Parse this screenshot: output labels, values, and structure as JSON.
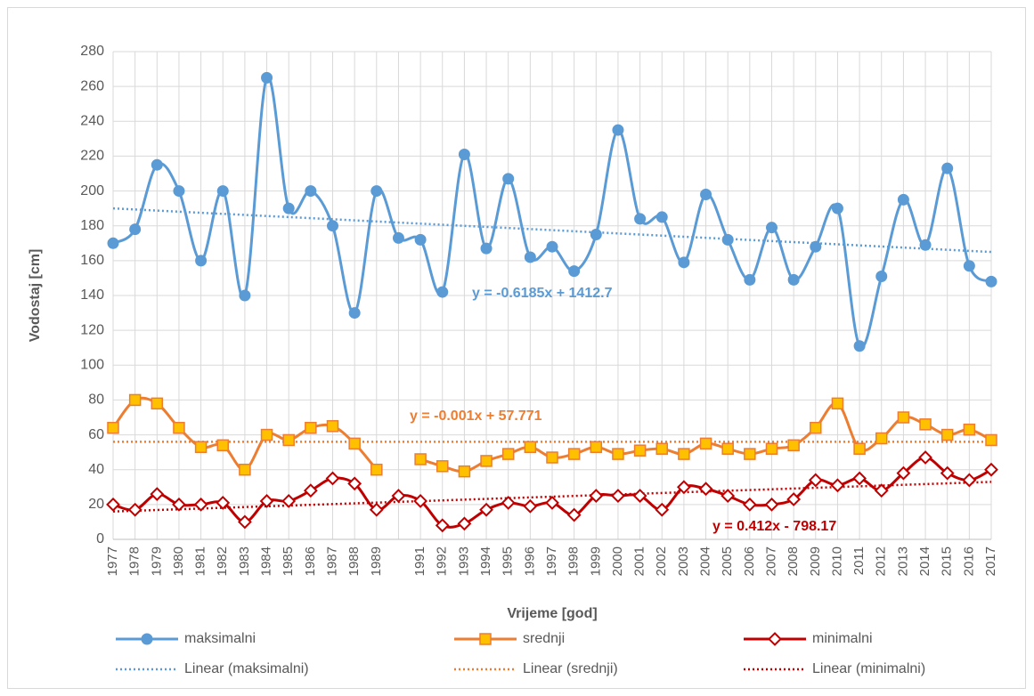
{
  "chart_data": {
    "type": "line",
    "y_label": "Vodostaj [cm]",
    "x_label": "Vrijeme [god]",
    "categories": [
      "1977",
      "1978",
      "1979",
      "1980",
      "1981",
      "1982",
      "1983",
      "1984",
      "1985",
      "1986",
      "1987",
      "1988",
      "1989",
      null,
      "1991",
      "1992",
      "1993",
      "1994",
      "1995",
      "1996",
      "1997",
      "1998",
      "1999",
      "2000",
      "2001",
      "2002",
      "2003",
      "2004",
      "2005",
      "2006",
      "2007",
      "2008",
      "2009",
      "2010",
      "2011",
      "2012",
      "2013",
      "2014",
      "2015",
      "2016",
      "2017"
    ],
    "series": [
      {
        "name": "maksimalni",
        "color": "#5b9bd5",
        "marker": "circle",
        "values": [
          170,
          178,
          215,
          200,
          160,
          200,
          140,
          265,
          190,
          200,
          180,
          130,
          200,
          173,
          172,
          142,
          221,
          167,
          207,
          162,
          168,
          154,
          175,
          235,
          184,
          185,
          159,
          198,
          172,
          149,
          179,
          149,
          168,
          190,
          111,
          151,
          195,
          169,
          213,
          157,
          148
        ]
      },
      {
        "name": "srednji",
        "color": "#ed7d31",
        "marker": "square",
        "values": [
          64,
          80,
          78,
          64,
          53,
          54,
          40,
          60,
          57,
          64,
          65,
          55,
          40,
          null,
          46,
          42,
          39,
          45,
          49,
          53,
          47,
          49,
          53,
          49,
          51,
          52,
          49,
          55,
          52,
          49,
          52,
          54,
          64,
          78,
          52,
          58,
          70,
          66,
          60,
          63,
          57
        ]
      },
      {
        "name": "minimalni",
        "color": "#c00000",
        "marker": "diamond",
        "values": [
          20,
          17,
          26,
          20,
          20,
          21,
          10,
          22,
          22,
          28,
          35,
          32,
          17,
          25,
          22,
          8,
          9,
          17,
          21,
          19,
          21,
          14,
          25,
          25,
          25,
          17,
          30,
          29,
          25,
          20,
          20,
          23,
          34,
          31,
          35,
          28,
          38,
          47,
          38,
          34,
          40
        ]
      }
    ],
    "trendlines": [
      {
        "name": "Linear (maksimalni)",
        "color": "#5b9bd5",
        "values": [
          190,
          165
        ],
        "equation": "y = -0.6185x + 1412.7"
      },
      {
        "name": "Linear (srednji)",
        "color": "#ed7d31",
        "values": [
          56,
          56
        ],
        "equation": "y = -0.001x + 57.771"
      },
      {
        "name": "Linear (minimalni)",
        "color": "#c00000",
        "values": [
          16,
          33
        ],
        "equation": "y = 0.412x - 798.17"
      }
    ],
    "ylim": [
      0,
      280
    ],
    "yticks": [
      0,
      20,
      40,
      60,
      80,
      100,
      120,
      140,
      160,
      180,
      200,
      220,
      240,
      260,
      280
    ],
    "grid": true,
    "legend": "bottom"
  }
}
